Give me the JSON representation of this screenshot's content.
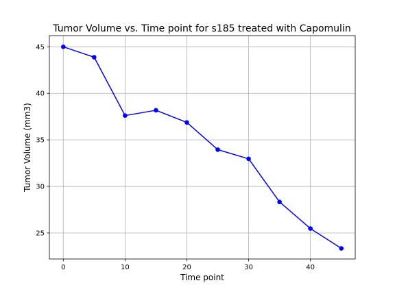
{
  "chart_data": {
    "type": "line",
    "title": "Tumor Volume vs. Time point for s185 treated with Capomulin",
    "xlabel": "Time point",
    "ylabel": "Tumor Volume (mm3)",
    "x": [
      0,
      5,
      10,
      15,
      20,
      25,
      30,
      35,
      40,
      45
    ],
    "series": [
      {
        "values": [
          45.0,
          43.88,
          37.61,
          38.18,
          36.87,
          33.95,
          32.96,
          28.33,
          25.47,
          23.34
        ],
        "color": "#0000ff"
      }
    ],
    "xlim": [
      -2.25,
      47.25
    ],
    "ylim": [
      22.2,
      46.2
    ],
    "xticks": [
      0,
      10,
      20,
      30,
      40
    ],
    "yticks": [
      25,
      30,
      35,
      40,
      45
    ],
    "xtick_labels": [
      "0",
      "10",
      "20",
      "30",
      "40"
    ],
    "ytick_labels": [
      "25",
      "30",
      "35",
      "40",
      "45"
    ],
    "grid": true,
    "marker": "circle"
  }
}
